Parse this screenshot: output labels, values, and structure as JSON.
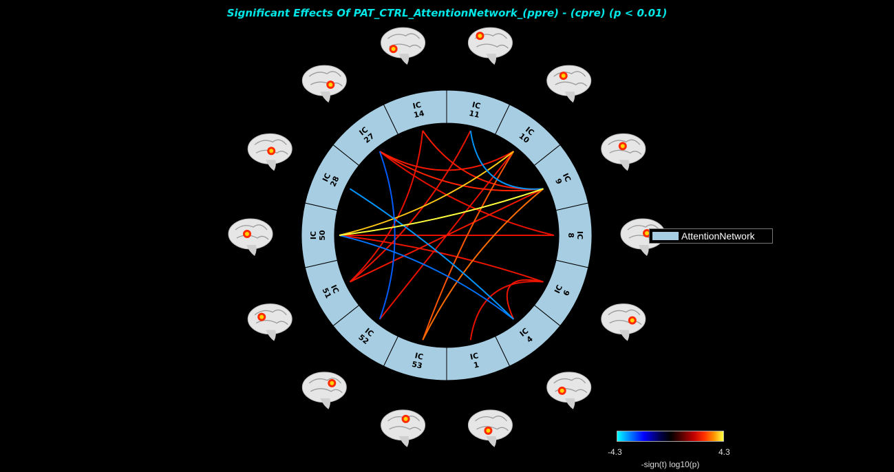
{
  "title": "Significant Effects Of PAT_CTRL_AttentionNetwork_(ppre) - (cpre) (p < 0.01)",
  "colors": {
    "ring": "#a6cde2",
    "title": "#00e5e5"
  },
  "nodes": [
    {
      "id": "11",
      "label": "IC 11"
    },
    {
      "id": "10",
      "label": "IC 10"
    },
    {
      "id": "9",
      "label": "IC 9"
    },
    {
      "id": "8",
      "label": "IC 8"
    },
    {
      "id": "6",
      "label": "IC 6"
    },
    {
      "id": "4",
      "label": "IC 4"
    },
    {
      "id": "1",
      "label": "IC 1"
    },
    {
      "id": "53",
      "label": "IC 53"
    },
    {
      "id": "52",
      "label": "IC 52"
    },
    {
      "id": "51",
      "label": "IC 51"
    },
    {
      "id": "50",
      "label": "IC 50"
    },
    {
      "id": "28",
      "label": "IC 28"
    },
    {
      "id": "27",
      "label": "IC 27"
    },
    {
      "id": "14",
      "label": "IC 14"
    }
  ],
  "connections": [
    {
      "a": "50",
      "b": "9",
      "value": 4.3
    },
    {
      "a": "50",
      "b": "10",
      "value": 3.8
    },
    {
      "a": "53",
      "b": "9",
      "value": 3.0
    },
    {
      "a": "53",
      "b": "10",
      "value": 2.8
    },
    {
      "a": "27",
      "b": "9",
      "value": 2.4
    },
    {
      "a": "27",
      "b": "10",
      "value": 2.2
    },
    {
      "a": "27",
      "b": "8",
      "value": 2.0
    },
    {
      "a": "14",
      "b": "9",
      "value": 2.3
    },
    {
      "a": "14",
      "b": "51",
      "value": 2.0
    },
    {
      "a": "11",
      "b": "51",
      "value": 2.1
    },
    {
      "a": "11",
      "b": "9",
      "value": -3.8
    },
    {
      "a": "28",
      "b": "4",
      "value": -3.8
    },
    {
      "a": "50",
      "b": "4",
      "value": -3.6
    },
    {
      "a": "27",
      "b": "52",
      "value": -3.4
    },
    {
      "a": "50",
      "b": "8",
      "value": 2.0
    },
    {
      "a": "50",
      "b": "6",
      "value": 2.1
    },
    {
      "a": "51",
      "b": "9",
      "value": 2.2
    },
    {
      "a": "1",
      "b": "6",
      "value": 2.0
    },
    {
      "a": "4",
      "b": "6",
      "value": 2.1
    },
    {
      "a": "52",
      "b": "10",
      "value": 2.0
    }
  ],
  "legend": {
    "label": "AttentionNetwork",
    "color": "#a6cde2"
  },
  "colorbar": {
    "min": "-4.3",
    "max": "4.3",
    "label": "-sign(t) log10(p)"
  }
}
